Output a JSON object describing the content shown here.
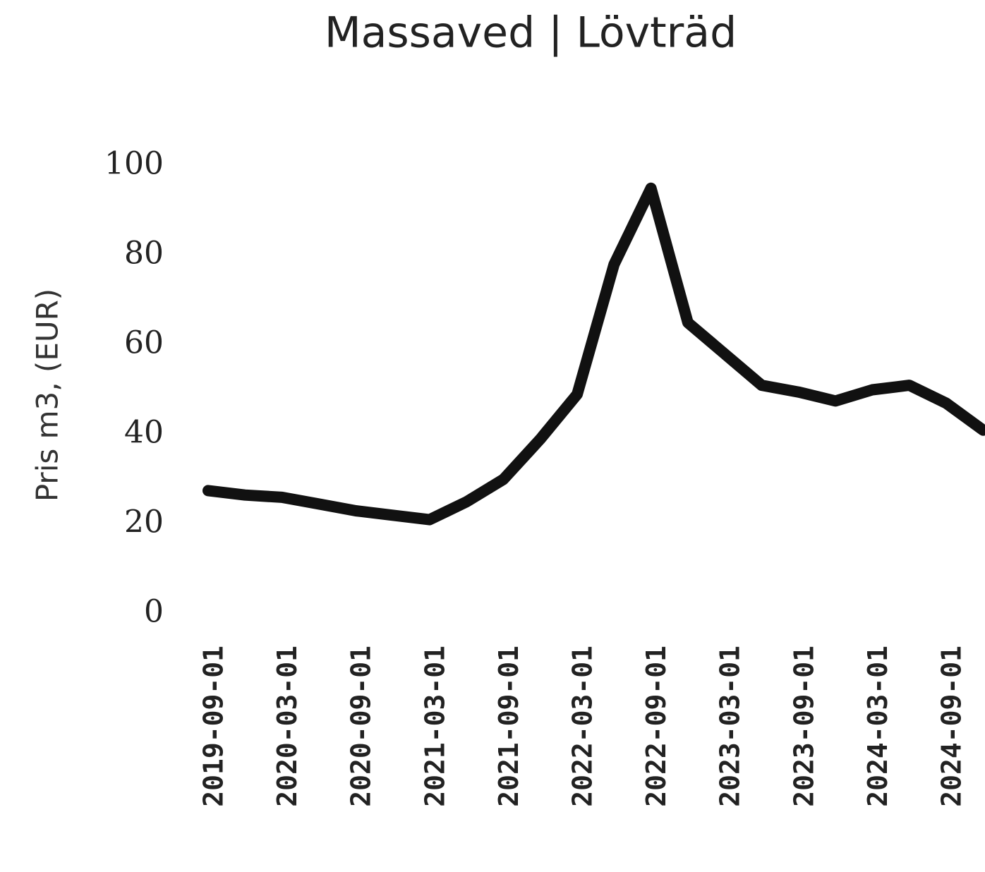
{
  "chart_data": {
    "type": "line",
    "title": "Massaved | Lövträd",
    "y_label": "Pris m3, (EUR)",
    "categories": [
      "2019-09-01",
      null,
      "2020-03-01",
      null,
      "2020-09-01",
      null,
      "2021-03-01",
      null,
      "2021-09-01",
      null,
      "2022-03-01",
      null,
      "2022-09-01",
      null,
      "2023-03-01",
      null,
      "2023-09-01",
      null,
      "2024-03-01",
      null,
      "2024-09-01",
      null
    ],
    "series": [
      {
        "name": "Massaved",
        "color": "#111111",
        "values": [
          27.5,
          26.5,
          26,
          24.5,
          23,
          22,
          21,
          25,
          30,
          39,
          49,
          78,
          95,
          65,
          58,
          51,
          49.5,
          47.5,
          50,
          51,
          47,
          41
        ]
      }
    ],
    "ylim": [
      0,
      100
    ],
    "yticks": [
      0,
      20,
      40,
      60,
      80,
      100
    ],
    "grid": false
  }
}
